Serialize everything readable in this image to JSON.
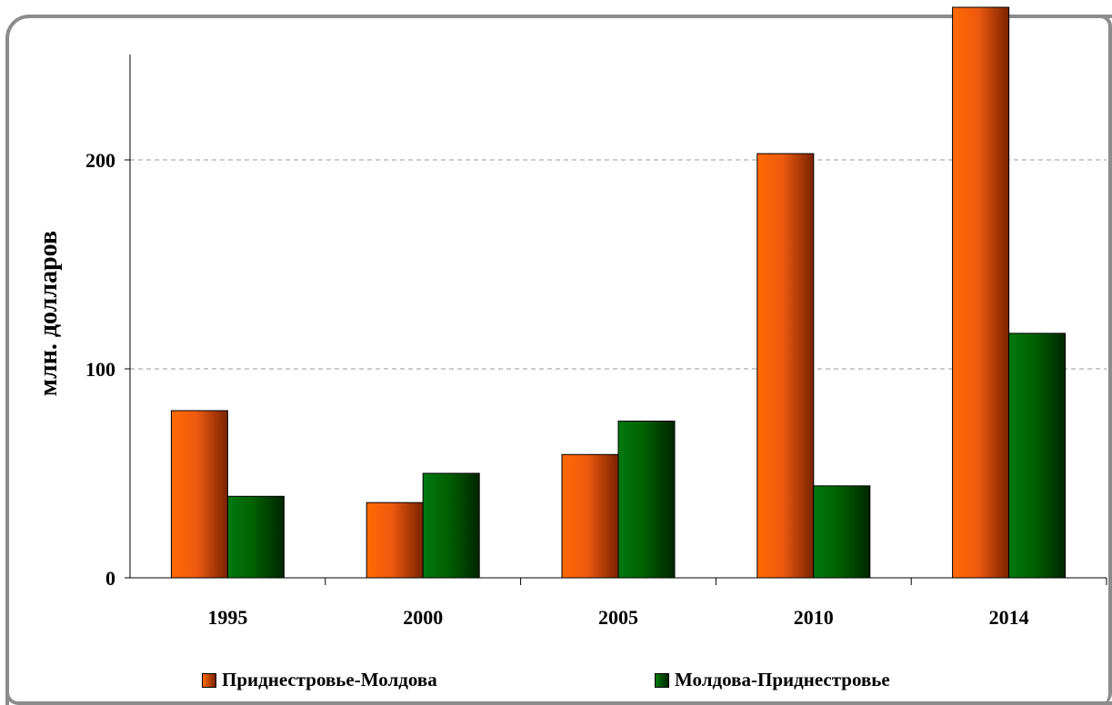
{
  "chart_data": {
    "type": "bar",
    "categories": [
      "1995",
      "2000",
      "2005",
      "2010",
      "2014"
    ],
    "series": [
      {
        "name": "Приднестровье-Молдова",
        "values": [
          80,
          36,
          59,
          203,
          290
        ],
        "color": "#ff6400"
      },
      {
        "name": "Молдова-Приднестровье",
        "values": [
          39,
          50,
          75,
          44,
          117
        ],
        "color": "#008000"
      }
    ],
    "ylabel": "млн. долларов",
    "ylim": [
      0,
      250
    ],
    "yticks": [
      "0",
      "100",
      "200"
    ],
    "grid": "horizontal dashed",
    "legend_position": "bottom"
  }
}
